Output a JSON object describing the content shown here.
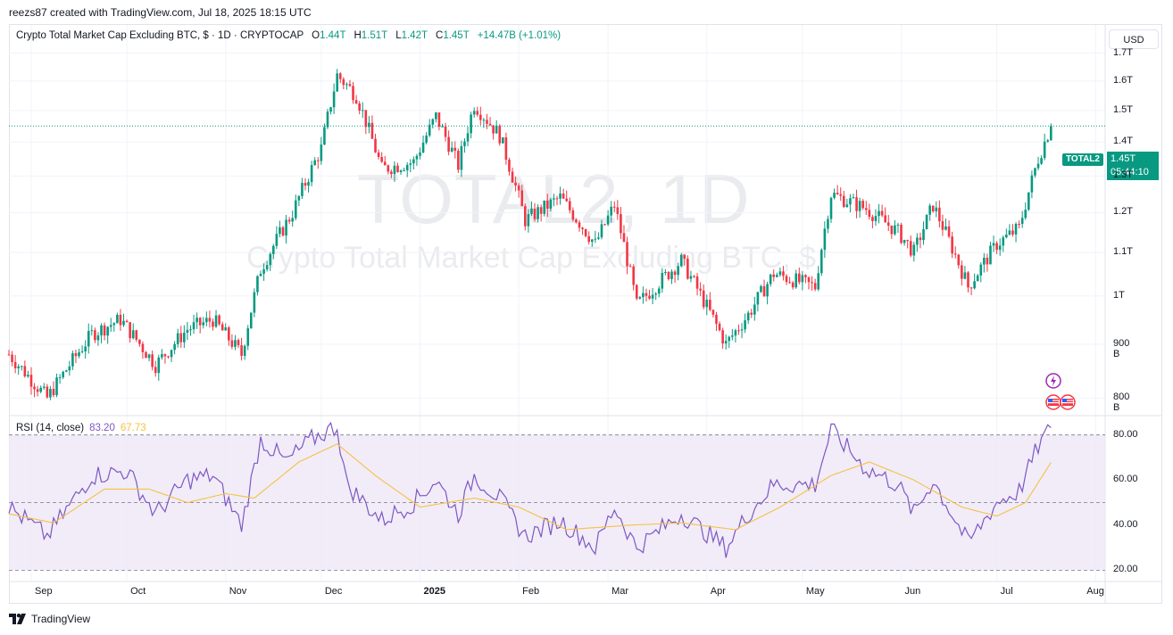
{
  "header": {
    "caption": "reezs87 created with TradingView.com, Jul 18, 2025 18:15 UTC"
  },
  "legend": {
    "symbol": "Crypto Total Market Cap Excluding BTC, $ · 1D · CRYPTOCAP",
    "open_label": "O",
    "open": "1.44T",
    "high_label": "H",
    "high": "1.51T",
    "low_label": "L",
    "low": "1.42T",
    "close_label": "C",
    "close": "1.45T",
    "change": "+14.47B (+1.01%)"
  },
  "currency_button": "USD",
  "watermark": {
    "ticker": "TOTAL2, 1D",
    "name": "Crypto Total Market Cap Excluding BTC, $"
  },
  "last_price": {
    "ticker": "TOTAL2",
    "value": "1.45T",
    "countdown": "05:44:10"
  },
  "rsi_legend": {
    "label": "RSI (14, close)",
    "rsi": "83.20",
    "ma": "67.73"
  },
  "footer": {
    "brand": "TradingView"
  },
  "colors": {
    "up": "#089981",
    "down": "#f23645",
    "rsi": "#7e57c2",
    "rsi_ma": "#f5c242",
    "band": "#ede7f6"
  },
  "chart_data": [
    {
      "type": "candlestick",
      "title": "Crypto Total Market Cap Excluding BTC, $ · 1D · CRYPTOCAP",
      "y_scale": "log",
      "ylim": [
        0.77,
        1.78
      ],
      "y_unit": "T USD",
      "y_ticks": [
        {
          "v": 1.7,
          "label": "1.7T"
        },
        {
          "v": 1.6,
          "label": "1.6T"
        },
        {
          "v": 1.5,
          "label": "1.5T"
        },
        {
          "v": 1.4,
          "label": "1.4T"
        },
        {
          "v": 1.3,
          "label": "1.3T"
        },
        {
          "v": 1.2,
          "label": "1.2T"
        },
        {
          "v": 1.1,
          "label": "1.1T"
        },
        {
          "v": 1.0,
          "label": "1T"
        },
        {
          "v": 0.9,
          "label": "900 B"
        },
        {
          "v": 0.8,
          "label": "800 B"
        }
      ],
      "x_ticks": [
        {
          "date": "2024-09-01",
          "label": "Sep",
          "bold": false
        },
        {
          "date": "2024-10-01",
          "label": "Oct",
          "bold": false
        },
        {
          "date": "2024-11-01",
          "label": "Nov",
          "bold": false
        },
        {
          "date": "2024-12-01",
          "label": "Dec",
          "bold": false
        },
        {
          "date": "2025-01-01",
          "label": "2025",
          "bold": true
        },
        {
          "date": "2025-02-01",
          "label": "Feb",
          "bold": false
        },
        {
          "date": "2025-03-01",
          "label": "Mar",
          "bold": false
        },
        {
          "date": "2025-04-01",
          "label": "Apr",
          "bold": false
        },
        {
          "date": "2025-05-01",
          "label": "May",
          "bold": false
        },
        {
          "date": "2025-06-01",
          "label": "Jun",
          "bold": false
        },
        {
          "date": "2025-07-01",
          "label": "Jul",
          "bold": false
        },
        {
          "date": "2025-08-01",
          "label": "Aug",
          "bold": false
        }
      ],
      "x_range": [
        "2024-08-25",
        "2025-08-04"
      ],
      "last_close": 1.45,
      "anchors": [
        {
          "date": "2024-08-25",
          "close": 0.88
        },
        {
          "date": "2024-09-06",
          "close": 0.8
        },
        {
          "date": "2024-09-20",
          "close": 0.92
        },
        {
          "date": "2024-09-29",
          "close": 0.95
        },
        {
          "date": "2024-10-10",
          "close": 0.86
        },
        {
          "date": "2024-10-20",
          "close": 0.93
        },
        {
          "date": "2024-10-28",
          "close": 0.95
        },
        {
          "date": "2024-11-06",
          "close": 0.88
        },
        {
          "date": "2024-11-12",
          "close": 1.06
        },
        {
          "date": "2024-11-22",
          "close": 1.2
        },
        {
          "date": "2024-12-01",
          "close": 1.38
        },
        {
          "date": "2024-12-06",
          "close": 1.62
        },
        {
          "date": "2024-12-12",
          "close": 1.55
        },
        {
          "date": "2024-12-20",
          "close": 1.32
        },
        {
          "date": "2024-12-30",
          "close": 1.34
        },
        {
          "date": "2025-01-06",
          "close": 1.48
        },
        {
          "date": "2025-01-13",
          "close": 1.33
        },
        {
          "date": "2025-01-18",
          "close": 1.52
        },
        {
          "date": "2025-01-26",
          "close": 1.42
        },
        {
          "date": "2025-02-03",
          "close": 1.18
        },
        {
          "date": "2025-02-14",
          "close": 1.24
        },
        {
          "date": "2025-02-25",
          "close": 1.12
        },
        {
          "date": "2025-03-03",
          "close": 1.22
        },
        {
          "date": "2025-03-10",
          "close": 0.98
        },
        {
          "date": "2025-03-24",
          "close": 1.08
        },
        {
          "date": "2025-04-07",
          "close": 0.9
        },
        {
          "date": "2025-04-14",
          "close": 0.96
        },
        {
          "date": "2025-04-22",
          "close": 1.05
        },
        {
          "date": "2025-05-05",
          "close": 1.02
        },
        {
          "date": "2025-05-10",
          "close": 1.25
        },
        {
          "date": "2025-05-21",
          "close": 1.21
        },
        {
          "date": "2025-05-31",
          "close": 1.15
        },
        {
          "date": "2025-06-05",
          "close": 1.1
        },
        {
          "date": "2025-06-11",
          "close": 1.22
        },
        {
          "date": "2025-06-22",
          "close": 1.02
        },
        {
          "date": "2025-07-01",
          "close": 1.12
        },
        {
          "date": "2025-07-08",
          "close": 1.16
        },
        {
          "date": "2025-07-14",
          "close": 1.35
        },
        {
          "date": "2025-07-18",
          "close": 1.45
        }
      ]
    },
    {
      "type": "line",
      "title": "RSI (14, close)",
      "ylim": [
        15,
        87
      ],
      "y_ticks": [
        {
          "v": 80,
          "label": "80.00"
        },
        {
          "v": 60,
          "label": "60.00"
        },
        {
          "v": 40,
          "label": "40.00"
        },
        {
          "v": 20,
          "label": "20.00"
        }
      ],
      "bands": {
        "upper": 80,
        "middle": 50,
        "lower": 20
      },
      "series": [
        {
          "name": "RSI",
          "color": "#7e57c2",
          "last": 83.2,
          "anchors": [
            {
              "date": "2024-08-25",
              "value": 48
            },
            {
              "date": "2024-09-06",
              "value": 35
            },
            {
              "date": "2024-09-20",
              "value": 62
            },
            {
              "date": "2024-10-01",
              "value": 64
            },
            {
              "date": "2024-10-10",
              "value": 45
            },
            {
              "date": "2024-10-20",
              "value": 60
            },
            {
              "date": "2024-10-28",
              "value": 62
            },
            {
              "date": "2024-11-06",
              "value": 40
            },
            {
              "date": "2024-11-12",
              "value": 78
            },
            {
              "date": "2024-11-20",
              "value": 68
            },
            {
              "date": "2024-11-28",
              "value": 78
            },
            {
              "date": "2024-12-06",
              "value": 84
            },
            {
              "date": "2024-12-09",
              "value": 58
            },
            {
              "date": "2024-12-20",
              "value": 42
            },
            {
              "date": "2024-12-30",
              "value": 50
            },
            {
              "date": "2025-01-06",
              "value": 60
            },
            {
              "date": "2025-01-13",
              "value": 45
            },
            {
              "date": "2025-01-18",
              "value": 62
            },
            {
              "date": "2025-01-26",
              "value": 52
            },
            {
              "date": "2025-02-03",
              "value": 35
            },
            {
              "date": "2025-02-14",
              "value": 42
            },
            {
              "date": "2025-02-25",
              "value": 30
            },
            {
              "date": "2025-03-03",
              "value": 48
            },
            {
              "date": "2025-03-10",
              "value": 30
            },
            {
              "date": "2025-03-24",
              "value": 45
            },
            {
              "date": "2025-04-07",
              "value": 30
            },
            {
              "date": "2025-04-14",
              "value": 45
            },
            {
              "date": "2025-04-22",
              "value": 58
            },
            {
              "date": "2025-05-05",
              "value": 58
            },
            {
              "date": "2025-05-10",
              "value": 82
            },
            {
              "date": "2025-05-21",
              "value": 65
            },
            {
              "date": "2025-05-31",
              "value": 58
            },
            {
              "date": "2025-06-05",
              "value": 45
            },
            {
              "date": "2025-06-11",
              "value": 60
            },
            {
              "date": "2025-06-22",
              "value": 32
            },
            {
              "date": "2025-07-01",
              "value": 50
            },
            {
              "date": "2025-07-08",
              "value": 55
            },
            {
              "date": "2025-07-14",
              "value": 75
            },
            {
              "date": "2025-07-18",
              "value": 83.2
            }
          ]
        },
        {
          "name": "RSI-based MA",
          "color": "#f5c242",
          "last": 67.73,
          "anchors": [
            {
              "date": "2024-08-25",
              "value": 45
            },
            {
              "date": "2024-09-08",
              "value": 41
            },
            {
              "date": "2024-09-24",
              "value": 56
            },
            {
              "date": "2024-10-08",
              "value": 56
            },
            {
              "date": "2024-10-20",
              "value": 50
            },
            {
              "date": "2024-11-01",
              "value": 54
            },
            {
              "date": "2024-11-10",
              "value": 52
            },
            {
              "date": "2024-11-24",
              "value": 68
            },
            {
              "date": "2024-12-06",
              "value": 76
            },
            {
              "date": "2024-12-18",
              "value": 62
            },
            {
              "date": "2025-01-01",
              "value": 48
            },
            {
              "date": "2025-01-18",
              "value": 52
            },
            {
              "date": "2025-02-01",
              "value": 48
            },
            {
              "date": "2025-02-16",
              "value": 38
            },
            {
              "date": "2025-03-08",
              "value": 40
            },
            {
              "date": "2025-03-24",
              "value": 41
            },
            {
              "date": "2025-04-10",
              "value": 38
            },
            {
              "date": "2025-04-24",
              "value": 48
            },
            {
              "date": "2025-05-10",
              "value": 62
            },
            {
              "date": "2025-05-22",
              "value": 68
            },
            {
              "date": "2025-06-05",
              "value": 60
            },
            {
              "date": "2025-06-20",
              "value": 48
            },
            {
              "date": "2025-07-01",
              "value": 44
            },
            {
              "date": "2025-07-10",
              "value": 50
            },
            {
              "date": "2025-07-18",
              "value": 67.73
            }
          ]
        }
      ]
    }
  ]
}
